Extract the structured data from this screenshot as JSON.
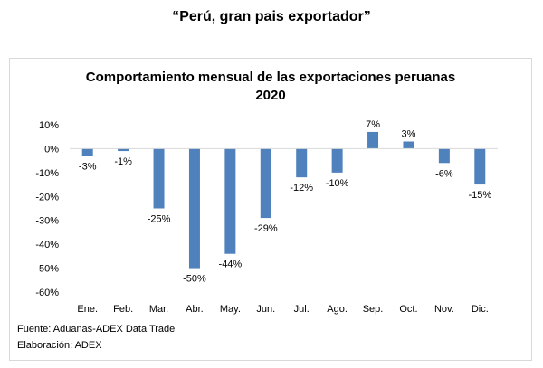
{
  "headline": "“Perú, gran pais exportador”",
  "chart_data": {
    "type": "bar",
    "title_line1": "Comportamiento  mensual de las exportaciones peruanas",
    "title_line2": "2020",
    "categories": [
      "Ene.",
      "Feb.",
      "Mar.",
      "Abr.",
      "May.",
      "Jun.",
      "Jul.",
      "Ago.",
      "Sep.",
      "Oct.",
      "Nov.",
      "Dic."
    ],
    "values": [
      -3,
      -1,
      -25,
      -50,
      -44,
      -29,
      -12,
      -10,
      7,
      3,
      -6,
      -15
    ],
    "data_labels": [
      "-3%",
      "-1%",
      "-25%",
      "-50%",
      "-44%",
      "-29%",
      "-12%",
      "-10%",
      "7%",
      "3%",
      "-6%",
      "-15%"
    ],
    "y_ticks": [
      10,
      0,
      -10,
      -20,
      -30,
      -40,
      -50,
      -60
    ],
    "y_tick_labels": [
      "10%",
      "0%",
      "-10%",
      "-20%",
      "-30%",
      "-40%",
      "-50%",
      "-60%"
    ],
    "ylim": [
      -60,
      10
    ],
    "bar_color": "#4f81bd",
    "xlabel": "",
    "ylabel": "",
    "grid": false
  },
  "footnotes": {
    "source": "Fuente: Aduanas-ADEX Data Trade",
    "prepared": "Elaboración: ADEX"
  }
}
